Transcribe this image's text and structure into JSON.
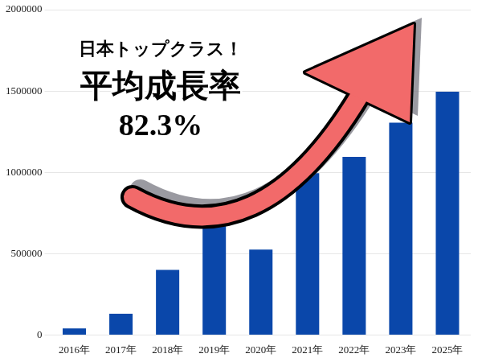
{
  "chart_data": {
    "type": "bar",
    "annotations": [
      "日本トップクラス！",
      "平均成長率",
      "82.3%"
    ],
    "categories": [
      "2016年",
      "2017年",
      "2018年",
      "2019年",
      "2020年",
      "2021年",
      "2022年",
      "2023年",
      "2025年"
    ],
    "values": [
      40000,
      130000,
      400000,
      670000,
      525000,
      995000,
      1095000,
      1305000,
      1495000
    ],
    "color": "#0a47aa",
    "ylim": [
      0,
      2000000
    ],
    "yticks": [
      0,
      500000,
      1000000,
      1500000,
      2000000
    ],
    "grid": true
  }
}
